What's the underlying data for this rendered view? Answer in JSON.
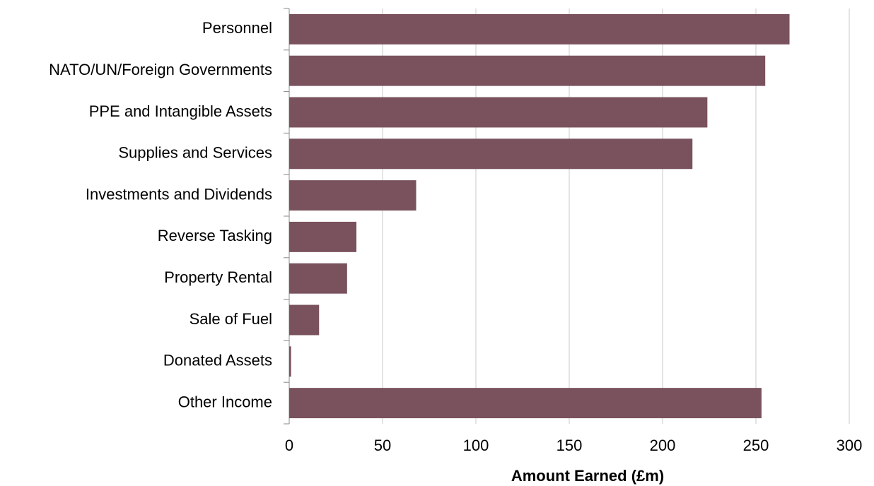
{
  "chart_data": {
    "type": "bar",
    "orientation": "horizontal",
    "x_label": "Amount Earned (£m)",
    "categories": [
      "Personnel",
      "NATO/UN/Foreign Governments",
      "PPE and Intangible Assets",
      "Supplies and Services",
      "Investments and Dividends",
      "Reverse Tasking",
      "Property Rental",
      "Sale of Fuel",
      "Donated Assets",
      "Other Income"
    ],
    "values": [
      268,
      255,
      224,
      216,
      68,
      36,
      31,
      16,
      1,
      253
    ],
    "color": "#79525d",
    "xlim": [
      0,
      300
    ],
    "xticks": [
      0,
      50,
      100,
      150,
      200,
      250,
      300
    ],
    "grid": true
  }
}
